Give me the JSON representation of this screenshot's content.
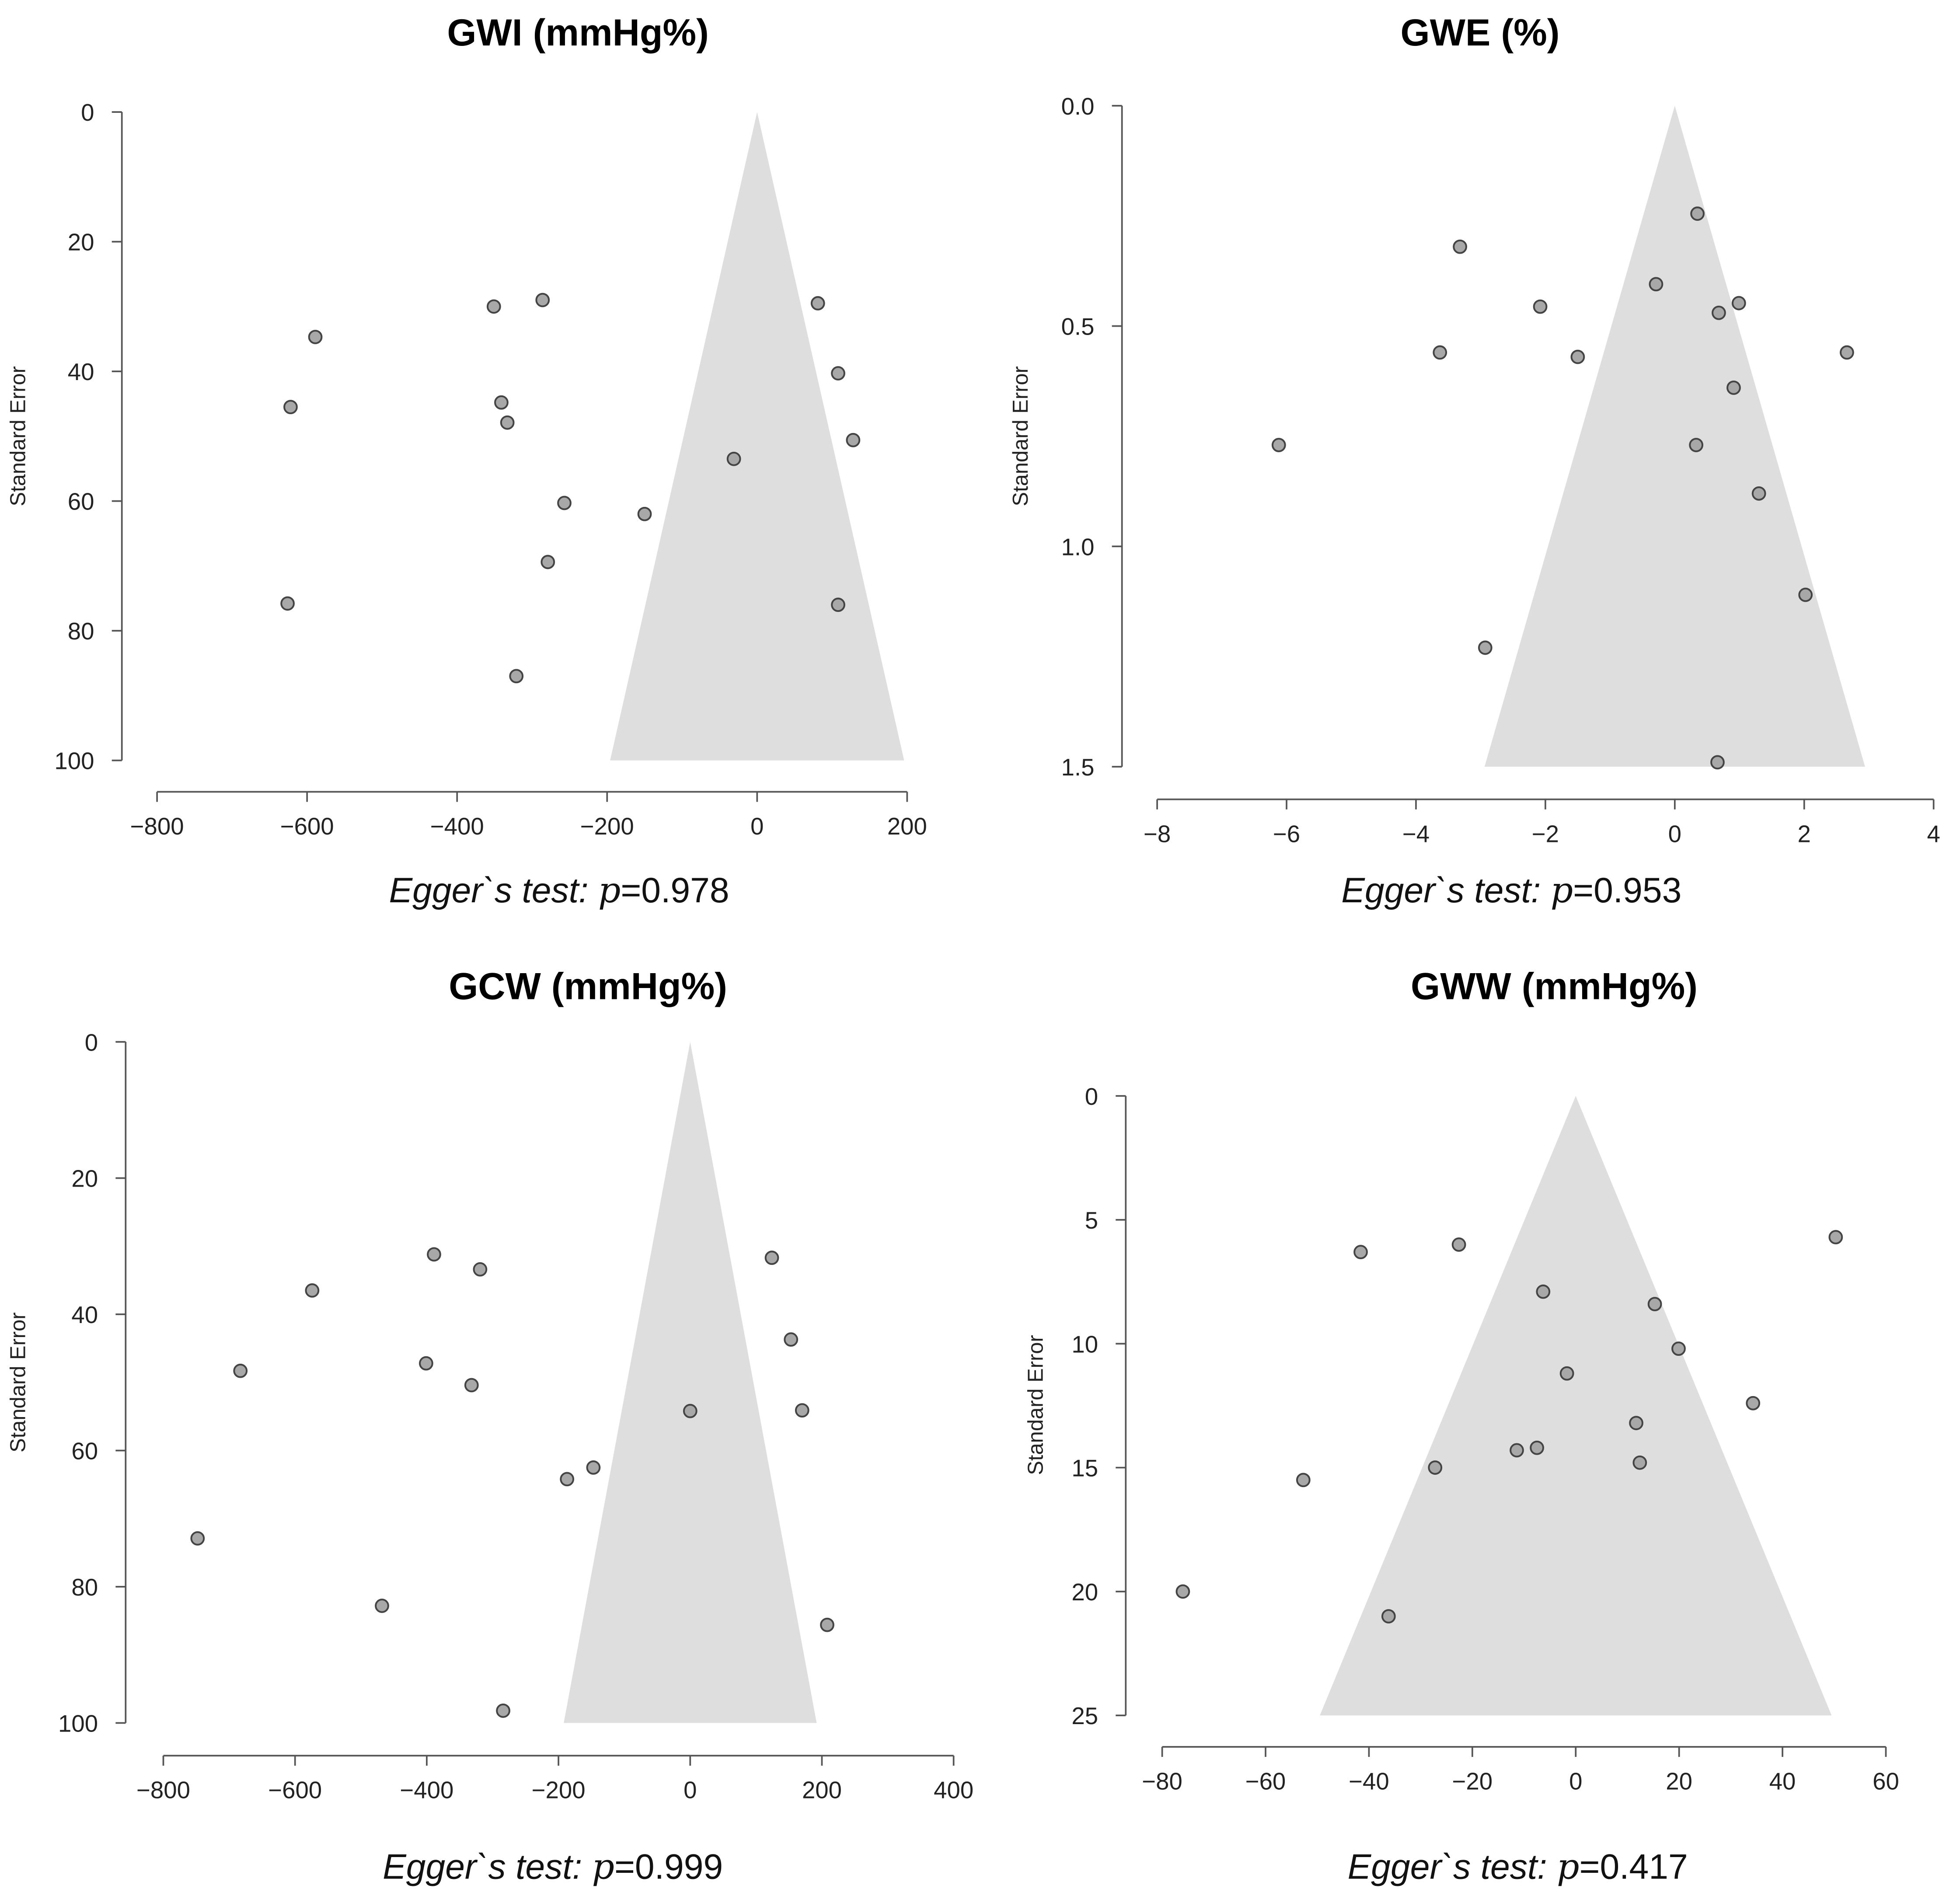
{
  "chart_data": [
    {
      "type": "scatter",
      "subtype": "funnel",
      "title": "GWI (mmHg%)",
      "ylabel": "Standard Error",
      "xlim": [
        -800,
        200
      ],
      "ylim": [
        0,
        100
      ],
      "y_inverted": true,
      "xticks": [
        "−800",
        "−600",
        "−400",
        "−200",
        "0",
        "200"
      ],
      "xtick_values": [
        -800,
        -600,
        -400,
        -200,
        0,
        200
      ],
      "yticks": [
        "0",
        "20",
        "40",
        "60",
        "80",
        "100"
      ],
      "ytick_values": [
        0,
        20,
        40,
        60,
        80,
        100
      ],
      "funnel": {
        "center": 0,
        "half_width_at_max_se": 196
      },
      "points": [
        {
          "x": -589,
          "y": 34.7
        },
        {
          "x": -622,
          "y": 45.5
        },
        {
          "x": -626,
          "y": 75.8
        },
        {
          "x": -351,
          "y": 30
        },
        {
          "x": -286,
          "y": 29
        },
        {
          "x": -341,
          "y": 44.8
        },
        {
          "x": -333,
          "y": 47.9
        },
        {
          "x": -257,
          "y": 60.3
        },
        {
          "x": -279,
          "y": 69.4
        },
        {
          "x": -321,
          "y": 87
        },
        {
          "x": -150,
          "y": 62
        },
        {
          "x": -31,
          "y": 53.5
        },
        {
          "x": 81,
          "y": 29.5
        },
        {
          "x": 108,
          "y": 40.3
        },
        {
          "x": 128,
          "y": 50.6
        },
        {
          "x": 108,
          "y": 76
        }
      ],
      "egger": {
        "label": "Egger`s test:",
        "p_symbol": "p",
        "value": "=0.978"
      }
    },
    {
      "type": "scatter",
      "subtype": "funnel",
      "title": "GWE (%)",
      "ylabel": "Standard Error",
      "xlim": [
        -8,
        4
      ],
      "ylim": [
        0,
        1.5
      ],
      "y_inverted": true,
      "xticks": [
        "−8",
        "−6",
        "−4",
        "−2",
        "0",
        "2",
        "4"
      ],
      "xtick_values": [
        -8,
        -6,
        -4,
        -2,
        0,
        2,
        4
      ],
      "yticks": [
        "0.0",
        "0.5",
        "1.0",
        "1.5"
      ],
      "ytick_values": [
        0,
        0.5,
        1.0,
        1.5
      ],
      "funnel": {
        "center": 0,
        "half_width_at_max_se": 2.94
      },
      "points": [
        {
          "x": 0.35,
          "y": 0.245
        },
        {
          "x": -3.32,
          "y": 0.32
        },
        {
          "x": -2.08,
          "y": 0.456
        },
        {
          "x": -0.29,
          "y": 0.405
        },
        {
          "x": 0.99,
          "y": 0.448
        },
        {
          "x": 0.68,
          "y": 0.47
        },
        {
          "x": 2.66,
          "y": 0.56
        },
        {
          "x": -3.63,
          "y": 0.56
        },
        {
          "x": -1.5,
          "y": 0.57
        },
        {
          "x": 0.91,
          "y": 0.64
        },
        {
          "x": -6.12,
          "y": 0.77
        },
        {
          "x": 0.33,
          "y": 0.77
        },
        {
          "x": 1.3,
          "y": 0.88
        },
        {
          "x": 2.02,
          "y": 1.11
        },
        {
          "x": -2.93,
          "y": 1.23
        },
        {
          "x": 0.66,
          "y": 1.49
        }
      ],
      "egger": {
        "label": "Egger`s test:",
        "p_symbol": "p",
        "value": "=0.953"
      }
    },
    {
      "type": "scatter",
      "subtype": "funnel",
      "title": "GCW (mmHg%)",
      "ylabel": "Standard Error",
      "xlim": [
        -800,
        400
      ],
      "ylim": [
        0,
        100
      ],
      "y_inverted": true,
      "xticks": [
        "−800",
        "−600",
        "−400",
        "−200",
        "0",
        "200",
        "400"
      ],
      "xtick_values": [
        -800,
        -600,
        -400,
        -200,
        0,
        200,
        400
      ],
      "yticks": [
        "0",
        "20",
        "40",
        "60",
        "80",
        "100"
      ],
      "ytick_values": [
        0,
        20,
        40,
        60,
        80,
        100
      ],
      "funnel": {
        "center": 0,
        "half_width_at_max_se": 192
      },
      "points": [
        {
          "x": -319,
          "y": 33.4
        },
        {
          "x": -389,
          "y": 31.2
        },
        {
          "x": -574,
          "y": 36.5
        },
        {
          "x": -683,
          "y": 48.3
        },
        {
          "x": -401,
          "y": 47.2
        },
        {
          "x": -332,
          "y": 50.4
        },
        {
          "x": -748,
          "y": 72.9
        },
        {
          "x": -468,
          "y": 82.8
        },
        {
          "x": -284,
          "y": 98.2
        },
        {
          "x": -187,
          "y": 64.2
        },
        {
          "x": -147,
          "y": 62.5
        },
        {
          "x": 0,
          "y": 54.2
        },
        {
          "x": 124,
          "y": 31.7
        },
        {
          "x": 153,
          "y": 43.7
        },
        {
          "x": 170,
          "y": 54.1
        },
        {
          "x": 208,
          "y": 85.6
        }
      ],
      "egger": {
        "label": "Egger`s test:",
        "p_symbol": "p",
        "value": "=0.999"
      }
    },
    {
      "type": "scatter",
      "subtype": "funnel",
      "title": "GWW (mmHg%)",
      "ylabel": "Standard Error",
      "xlim": [
        -80,
        60
      ],
      "ylim": [
        0,
        25
      ],
      "y_inverted": true,
      "xticks": [
        "−80",
        "−60",
        "−40",
        "−20",
        "0",
        "20",
        "40",
        "60"
      ],
      "xtick_values": [
        -80,
        -60,
        -40,
        -20,
        0,
        20,
        40,
        60
      ],
      "yticks": [
        "0",
        "5",
        "10",
        "15",
        "20",
        "25"
      ],
      "ytick_values": [
        0,
        5,
        10,
        15,
        20,
        25
      ],
      "funnel": {
        "center": 0,
        "half_width_at_max_se": 49.5
      },
      "points": [
        {
          "x": -41.6,
          "y": 6.3
        },
        {
          "x": -22.6,
          "y": 6.0
        },
        {
          "x": 50.3,
          "y": 5.7
        },
        {
          "x": -6.3,
          "y": 7.9
        },
        {
          "x": 15.3,
          "y": 8.4
        },
        {
          "x": 19.9,
          "y": 10.2
        },
        {
          "x": -1.7,
          "y": 11.2
        },
        {
          "x": 34.3,
          "y": 12.4
        },
        {
          "x": 11.7,
          "y": 13.2
        },
        {
          "x": -11.4,
          "y": 14.3
        },
        {
          "x": -7.5,
          "y": 14.2
        },
        {
          "x": 12.4,
          "y": 14.8
        },
        {
          "x": -27.2,
          "y": 15.0
        },
        {
          "x": -52.7,
          "y": 15.5
        },
        {
          "x": -76,
          "y": 20.0
        },
        {
          "x": -36.2,
          "y": 21.0
        }
      ],
      "egger": {
        "label": "Egger`s test:",
        "p_symbol": "p",
        "value": "=0.417"
      }
    }
  ]
}
